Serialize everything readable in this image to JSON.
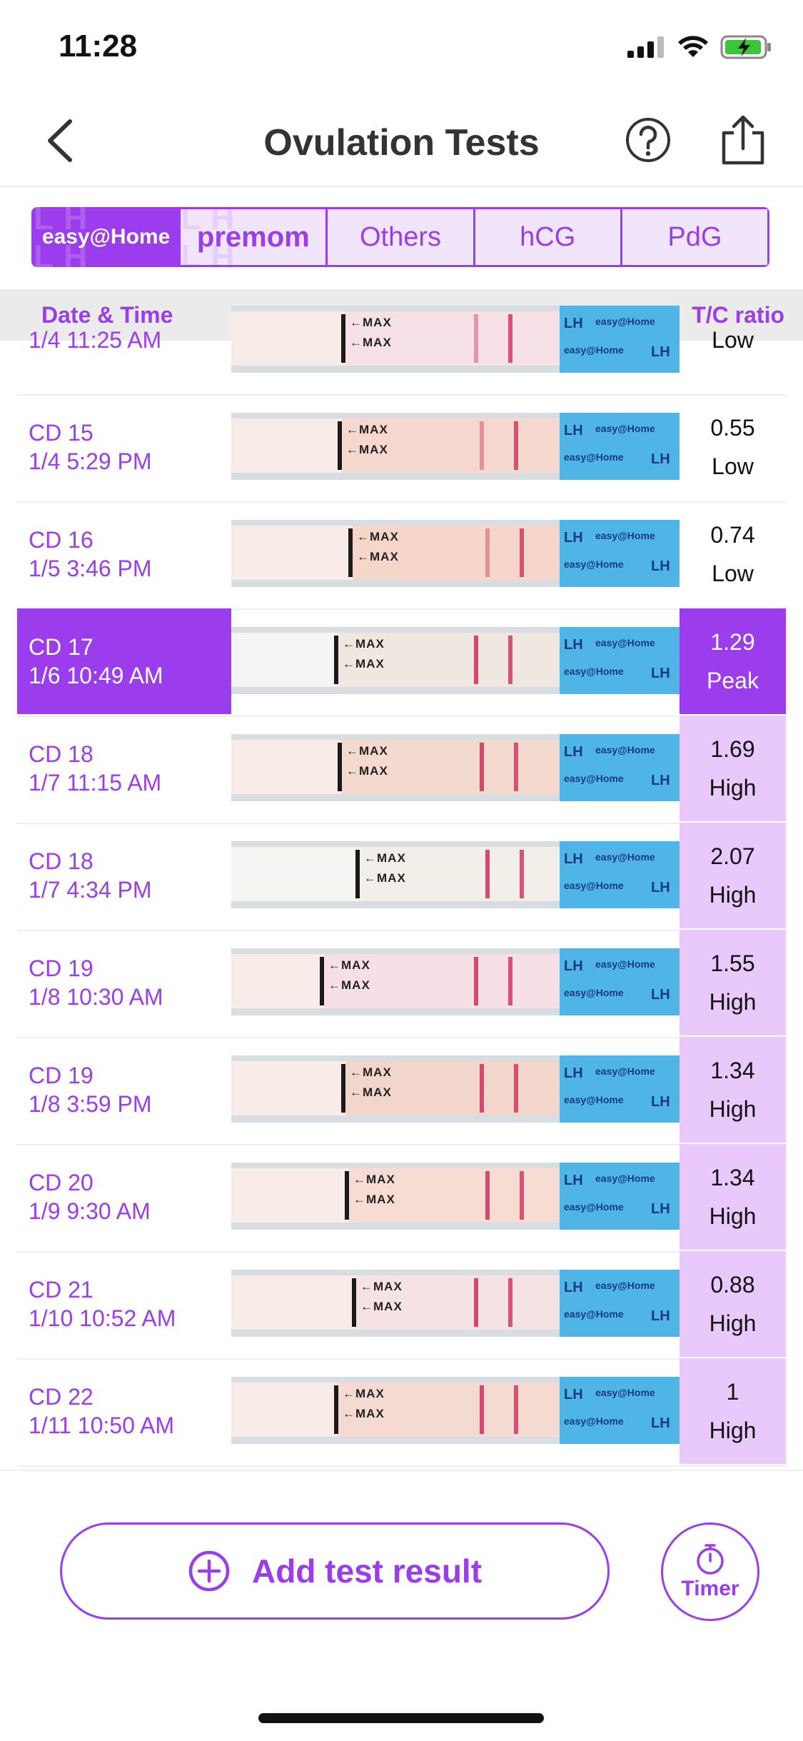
{
  "status": {
    "time": "11:28"
  },
  "nav": {
    "title": "Ovulation Tests"
  },
  "brand_tabs": [
    {
      "id": "easy",
      "label": "easy@Home",
      "selected": true
    },
    {
      "id": "premom",
      "label": "premom",
      "selected": false
    },
    {
      "id": "others",
      "label": "Others",
      "selected": false
    },
    {
      "id": "hcg",
      "label": "hCG",
      "selected": false
    },
    {
      "id": "pdg",
      "label": "PdG",
      "selected": false
    }
  ],
  "table_header": {
    "date_col": "Date & Time",
    "ratio_col": "T/C ratio"
  },
  "strip_text": {
    "max_label": "←MAX",
    "lh_label": "LH",
    "brand_label": "easy@Home"
  },
  "rows": [
    {
      "cd": "",
      "datetime": "1/4 11:25 AM",
      "ratio": "",
      "level": "Low",
      "state": "normal"
    },
    {
      "cd": "CD 15",
      "datetime": "1/4 5:29 PM",
      "ratio": "0.55",
      "level": "Low",
      "state": "normal"
    },
    {
      "cd": "CD 16",
      "datetime": "1/5 3:46 PM",
      "ratio": "0.74",
      "level": "Low",
      "state": "normal"
    },
    {
      "cd": "CD 17",
      "datetime": "1/6 10:49 AM",
      "ratio": "1.29",
      "level": "Peak",
      "state": "peak"
    },
    {
      "cd": "CD 18",
      "datetime": "1/7 11:15 AM",
      "ratio": "1.69",
      "level": "High",
      "state": "high"
    },
    {
      "cd": "CD 18",
      "datetime": "1/7 4:34 PM",
      "ratio": "2.07",
      "level": "High",
      "state": "high"
    },
    {
      "cd": "CD 19",
      "datetime": "1/8 10:30 AM",
      "ratio": "1.55",
      "level": "High",
      "state": "high"
    },
    {
      "cd": "CD 19",
      "datetime": "1/8 3:59 PM",
      "ratio": "1.34",
      "level": "High",
      "state": "high"
    },
    {
      "cd": "CD 20",
      "datetime": "1/9 9:30 AM",
      "ratio": "1.34",
      "level": "High",
      "state": "high"
    },
    {
      "cd": "CD 21",
      "datetime": "1/10 10:52 AM",
      "ratio": "0.88",
      "level": "High",
      "state": "high"
    },
    {
      "cd": "CD 22",
      "datetime": "1/11 10:50 AM",
      "ratio": "1",
      "level": "High",
      "state": "high"
    }
  ],
  "actions": {
    "add_label": "Add test result",
    "timer_label": "Timer"
  },
  "colors": {
    "accent": "#9b3ced",
    "high_bg": "#e9c9fb",
    "strip_blue": "#4fb4e6"
  },
  "icons": {
    "back": "chevron-left-icon",
    "help": "question-circle-icon",
    "share": "share-icon",
    "add": "plus-circle-icon",
    "timer": "stopwatch-icon"
  }
}
